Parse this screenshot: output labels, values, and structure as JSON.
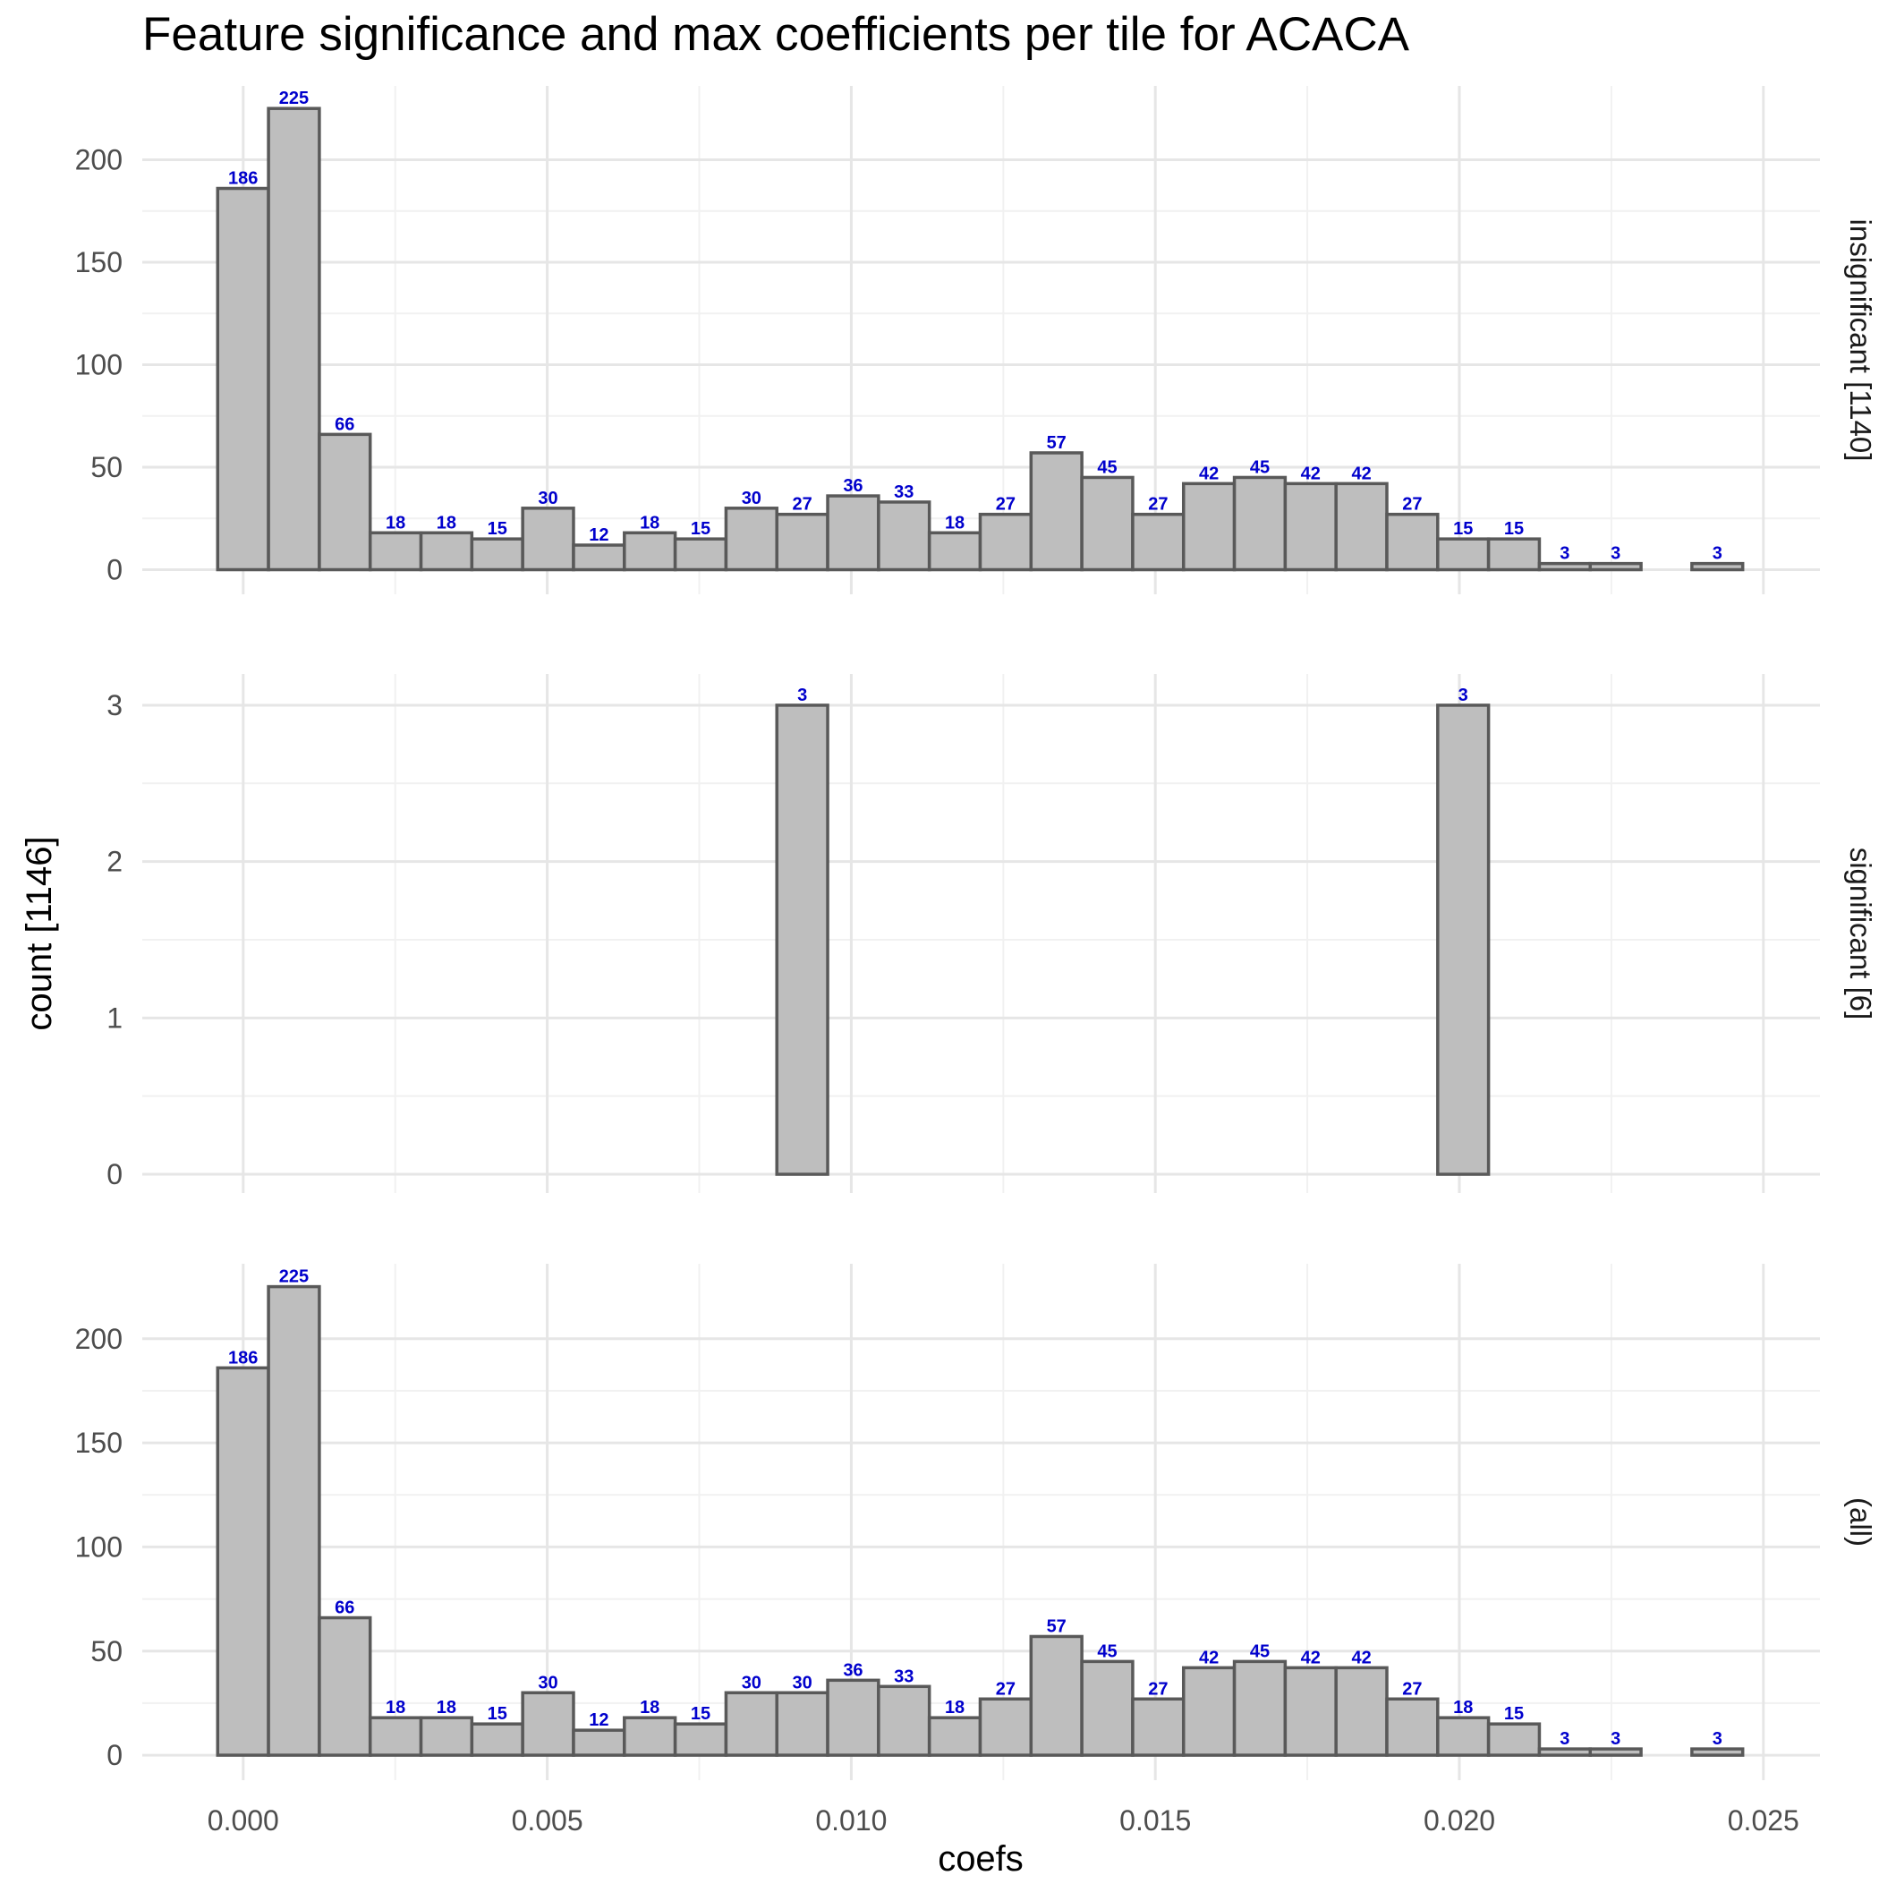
{
  "chart_data": {
    "type": "bar",
    "title": "Feature significance and max coefficients per tile for ACACA",
    "xlabel": "coefs",
    "ylabel": "count [1146]",
    "x_ticks": [
      "0.000",
      "0.005",
      "0.010",
      "0.015",
      "0.020",
      "0.025"
    ],
    "x_tick_values": [
      0,
      0.005,
      0.01,
      0.015,
      0.02,
      0.025
    ],
    "xlim": [
      -0.00166,
      0.02593
    ],
    "bin_start": -0.00042,
    "bin_width": 0.000836,
    "grid": true,
    "bar_color": "#bebebe",
    "bar_edge_color": "#595959",
    "label_color": "#0000cc",
    "panels": [
      {
        "strip_label": "insignificant [1140]",
        "ylim": [
          -12,
          236
        ],
        "y_ticks": [
          "0",
          "50",
          "100",
          "150",
          "200"
        ],
        "y_tick_values": [
          0,
          50,
          100,
          150,
          200
        ],
        "values": [
          186,
          225,
          66,
          18,
          18,
          15,
          30,
          12,
          18,
          15,
          30,
          27,
          36,
          33,
          18,
          27,
          57,
          45,
          27,
          42,
          45,
          42,
          42,
          27,
          15,
          15,
          3,
          3,
          0,
          3
        ]
      },
      {
        "strip_label": "significant [6]",
        "ylim": [
          -0.12,
          3.2
        ],
        "y_ticks": [
          "0",
          "1",
          "2",
          "3"
        ],
        "y_tick_values": [
          0,
          1,
          2,
          3
        ],
        "values": [
          0,
          0,
          0,
          0,
          0,
          0,
          0,
          0,
          0,
          0,
          0,
          3,
          0,
          0,
          0,
          0,
          0,
          0,
          0,
          0,
          0,
          0,
          0,
          0,
          3,
          0,
          0,
          0,
          0,
          0
        ]
      },
      {
        "strip_label": "(all)",
        "ylim": [
          -12,
          236
        ],
        "y_ticks": [
          "0",
          "50",
          "100",
          "150",
          "200"
        ],
        "y_tick_values": [
          0,
          50,
          100,
          150,
          200
        ],
        "values": [
          186,
          225,
          66,
          18,
          18,
          15,
          30,
          12,
          18,
          15,
          30,
          30,
          36,
          33,
          18,
          27,
          57,
          45,
          27,
          42,
          45,
          42,
          42,
          27,
          18,
          15,
          3,
          3,
          0,
          3
        ]
      }
    ]
  }
}
